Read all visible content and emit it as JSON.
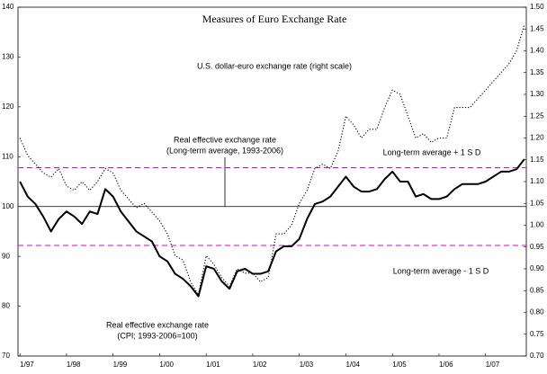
{
  "chart_data": {
    "type": "line",
    "title": "Measures of Euro Exchange Rate",
    "x": [
      0,
      2,
      4,
      6,
      8,
      10,
      12,
      14,
      16,
      18,
      20,
      22,
      24,
      26,
      28,
      30,
      32,
      34,
      36,
      38,
      40,
      42,
      44,
      46,
      48,
      50,
      52,
      54,
      56,
      58,
      60,
      62,
      64,
      66,
      68,
      70,
      72,
      74,
      76,
      78,
      80,
      82,
      84,
      86,
      88,
      90,
      92,
      94,
      96,
      98,
      100,
      102,
      104,
      106,
      108,
      110,
      112,
      114,
      116,
      118,
      120,
      122,
      124,
      126,
      128,
      130
    ],
    "xlim": [
      -0.5,
      130.5
    ],
    "xticks": [
      {
        "value": 0,
        "label": "1/97"
      },
      {
        "value": 12,
        "label": "1/98"
      },
      {
        "value": 24,
        "label": "1/99"
      },
      {
        "value": 36,
        "label": "1/00"
      },
      {
        "value": 48,
        "label": "1/01"
      },
      {
        "value": 60,
        "label": "1/02"
      },
      {
        "value": 72,
        "label": "1/03"
      },
      {
        "value": 84,
        "label": "1/04"
      },
      {
        "value": 96,
        "label": "1/05"
      },
      {
        "value": 108,
        "label": "1/06"
      },
      {
        "value": 120,
        "label": "1/07"
      }
    ],
    "ylim": [
      70,
      140
    ],
    "yticks": [
      70,
      80,
      90,
      100,
      110,
      120,
      130,
      140
    ],
    "y2lim": [
      0.7,
      1.5
    ],
    "y2ticks": [
      {
        "value": 0.7,
        "label": "0.70"
      },
      {
        "value": 0.75,
        "label": "0.75"
      },
      {
        "value": 0.8,
        "label": "0.80"
      },
      {
        "value": 0.85,
        "label": "0.85"
      },
      {
        "value": 0.9,
        "label": "0.90"
      },
      {
        "value": 0.95,
        "label": "0.95"
      },
      {
        "value": 1.0,
        "label": "1.00"
      },
      {
        "value": 1.05,
        "label": "1.05"
      },
      {
        "value": 1.1,
        "label": "1.10"
      },
      {
        "value": 1.15,
        "label": "1.15"
      },
      {
        "value": 1.2,
        "label": "1.20"
      },
      {
        "value": 1.25,
        "label": "1.25"
      },
      {
        "value": 1.3,
        "label": "1.30"
      },
      {
        "value": 1.35,
        "label": "1.35"
      },
      {
        "value": 1.4,
        "label": "1.40"
      },
      {
        "value": 1.45,
        "label": "1.45"
      },
      {
        "value": 1.5,
        "label": "1.50"
      }
    ],
    "series": [
      {
        "name": "Real effective exchange rate",
        "note": "(CPI; 1993-2006=100)",
        "color": "#000000",
        "style": "solid",
        "values": [
          105,
          102,
          100.5,
          98,
          95,
          97.5,
          99,
          98,
          96.5,
          99,
          98.5,
          103.5,
          102,
          99,
          97,
          95,
          94,
          93,
          90,
          89,
          86.5,
          85.5,
          84,
          82,
          88,
          87.5,
          85,
          83.5,
          87,
          87.5,
          86.5,
          86.5,
          87,
          91,
          92,
          92,
          93.5,
          97.5,
          100.5,
          101,
          102,
          104,
          106,
          104,
          103,
          103,
          103.5,
          105.5,
          107,
          105,
          105,
          102,
          102.5,
          101.5,
          101.5,
          102,
          103.5,
          104.5,
          104.5,
          104.5,
          105,
          106,
          107,
          107,
          107.5,
          109.5
        ]
      },
      {
        "name": "U.S. dollar-euro exchange rate (right scale)",
        "color": "#000000",
        "style": "dotted",
        "axis": "y2",
        "values": [
          1.2,
          1.16,
          1.14,
          1.12,
          1.11,
          1.13,
          1.09,
          1.08,
          1.1,
          1.08,
          1.1,
          1.13,
          1.12,
          1.08,
          1.06,
          1.04,
          1.05,
          1.03,
          1.01,
          0.98,
          0.93,
          0.92,
          0.87,
          0.84,
          0.93,
          0.91,
          0.88,
          0.86,
          0.9,
          0.89,
          0.89,
          0.87,
          0.88,
          0.98,
          0.98,
          1.0,
          1.05,
          1.08,
          1.13,
          1.14,
          1.13,
          1.17,
          1.25,
          1.23,
          1.2,
          1.22,
          1.22,
          1.27,
          1.31,
          1.3,
          1.25,
          1.2,
          1.21,
          1.19,
          1.2,
          1.2,
          1.27,
          1.27,
          1.27,
          1.29,
          1.31,
          1.33,
          1.35,
          1.37,
          1.4,
          1.46
        ]
      }
    ],
    "hlines": [
      {
        "value": 100,
        "color": "#000000",
        "dashed": false,
        "label": [
          "Real effective exchange rate",
          "(Long-term average, 1993-2006)"
        ]
      },
      {
        "value": 107.8,
        "color": "#e000e0",
        "dashed": true,
        "label": [
          "Long-term average + 1 S D"
        ]
      },
      {
        "value": 92.2,
        "color": "#e000e0",
        "dashed": true,
        "label": [
          "Long-term average - 1 S D"
        ]
      }
    ]
  }
}
